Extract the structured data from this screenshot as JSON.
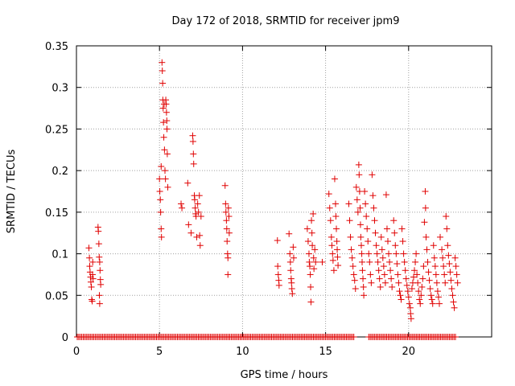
{
  "chart_data": {
    "type": "scatter",
    "title": "Day 172 of 2018, SRMTID for receiver jpm9",
    "xlabel": "GPS time / hours",
    "ylabel": "SRMTID / TECUs",
    "xlim": [
      0,
      25
    ],
    "ylim": [
      0,
      0.35
    ],
    "xticks": [
      0,
      5,
      10,
      15,
      20
    ],
    "xtick_labels": [
      "0",
      "5",
      "10",
      "15",
      "20"
    ],
    "yticks": [
      0,
      0.05,
      0.1,
      0.15,
      0.2,
      0.25,
      0.3,
      0.35
    ],
    "ytick_labels": [
      "0",
      "0.05",
      "0.1",
      "0.15",
      "0.2",
      "0.25",
      "0.3",
      "0.35"
    ],
    "grid": true,
    "marker": "+",
    "color": "#e00000",
    "zero_band": [
      [
        0.05,
        16.7
      ],
      [
        17.6,
        22.9
      ]
    ],
    "series": [
      {
        "name": "SRMTID",
        "points": [
          [
            0.75,
            0.107
          ],
          [
            0.78,
            0.095
          ],
          [
            0.8,
            0.085
          ],
          [
            0.82,
            0.078
          ],
          [
            0.85,
            0.072
          ],
          [
            0.87,
            0.066
          ],
          [
            0.9,
            0.06
          ],
          [
            0.92,
            0.045
          ],
          [
            0.95,
            0.043
          ],
          [
            0.97,
            0.075
          ],
          [
            0.98,
            0.09
          ],
          [
            1.0,
            0.07
          ],
          [
            1.3,
            0.132
          ],
          [
            1.32,
            0.127
          ],
          [
            1.35,
            0.112
          ],
          [
            1.37,
            0.096
          ],
          [
            1.4,
            0.09
          ],
          [
            1.42,
            0.08
          ],
          [
            1.44,
            0.069
          ],
          [
            1.46,
            0.063
          ],
          [
            1.38,
            0.05
          ],
          [
            1.4,
            0.04
          ],
          [
            5.0,
            0.19
          ],
          [
            5.02,
            0.175
          ],
          [
            5.05,
            0.165
          ],
          [
            5.07,
            0.15
          ],
          [
            5.1,
            0.13
          ],
          [
            5.12,
            0.12
          ],
          [
            5.15,
            0.33
          ],
          [
            5.17,
            0.32
          ],
          [
            5.19,
            0.305
          ],
          [
            5.2,
            0.285
          ],
          [
            5.22,
            0.275
          ],
          [
            5.24,
            0.258
          ],
          [
            5.1,
            0.205
          ],
          [
            5.26,
            0.24
          ],
          [
            5.3,
            0.225
          ],
          [
            5.33,
            0.2
          ],
          [
            5.36,
            0.19
          ],
          [
            5.38,
            0.285
          ],
          [
            5.4,
            0.28
          ],
          [
            5.42,
            0.27
          ],
          [
            5.45,
            0.25
          ],
          [
            5.47,
            0.22
          ],
          [
            5.5,
            0.18
          ],
          [
            5.28,
            0.28
          ],
          [
            5.44,
            0.26
          ],
          [
            6.3,
            0.16
          ],
          [
            6.35,
            0.155
          ],
          [
            6.7,
            0.185
          ],
          [
            6.75,
            0.135
          ],
          [
            6.9,
            0.125
          ],
          [
            7.0,
            0.242
          ],
          [
            7.02,
            0.235
          ],
          [
            7.04,
            0.22
          ],
          [
            7.06,
            0.208
          ],
          [
            7.1,
            0.17
          ],
          [
            7.12,
            0.165
          ],
          [
            7.15,
            0.155
          ],
          [
            7.18,
            0.148
          ],
          [
            7.2,
            0.145
          ],
          [
            7.24,
            0.12
          ],
          [
            7.3,
            0.16
          ],
          [
            7.35,
            0.15
          ],
          [
            7.4,
            0.17
          ],
          [
            7.42,
            0.122
          ],
          [
            7.45,
            0.11
          ],
          [
            7.5,
            0.145
          ],
          [
            8.95,
            0.182
          ],
          [
            8.98,
            0.16
          ],
          [
            9.0,
            0.15
          ],
          [
            9.03,
            0.14
          ],
          [
            9.05,
            0.13
          ],
          [
            9.07,
            0.115
          ],
          [
            9.1,
            0.1
          ],
          [
            9.12,
            0.095
          ],
          [
            9.15,
            0.155
          ],
          [
            9.18,
            0.145
          ],
          [
            9.2,
            0.125
          ],
          [
            9.12,
            0.075
          ],
          [
            12.1,
            0.116
          ],
          [
            12.12,
            0.085
          ],
          [
            12.15,
            0.075
          ],
          [
            12.18,
            0.068
          ],
          [
            12.2,
            0.062
          ],
          [
            12.8,
            0.124
          ],
          [
            12.85,
            0.1
          ],
          [
            12.88,
            0.09
          ],
          [
            12.9,
            0.08
          ],
          [
            12.93,
            0.07
          ],
          [
            12.95,
            0.065
          ],
          [
            12.97,
            0.058
          ],
          [
            13.0,
            0.052
          ],
          [
            13.05,
            0.108
          ],
          [
            13.08,
            0.095
          ],
          [
            13.9,
            0.13
          ],
          [
            13.95,
            0.115
          ],
          [
            14.0,
            0.1
          ],
          [
            14.02,
            0.09
          ],
          [
            14.05,
            0.085
          ],
          [
            14.08,
            0.075
          ],
          [
            14.1,
            0.06
          ],
          [
            14.12,
            0.042
          ],
          [
            14.15,
            0.14
          ],
          [
            14.18,
            0.125
          ],
          [
            14.2,
            0.11
          ],
          [
            14.25,
            0.148
          ],
          [
            14.28,
            0.095
          ],
          [
            14.3,
            0.082
          ],
          [
            14.35,
            0.105
          ],
          [
            14.4,
            0.09
          ],
          [
            14.8,
            0.09
          ],
          [
            15.2,
            0.172
          ],
          [
            15.25,
            0.155
          ],
          [
            15.3,
            0.14
          ],
          [
            15.35,
            0.12
          ],
          [
            15.38,
            0.11
          ],
          [
            15.42,
            0.1
          ],
          [
            15.45,
            0.092
          ],
          [
            15.5,
            0.08
          ],
          [
            15.55,
            0.19
          ],
          [
            15.6,
            0.16
          ],
          [
            15.62,
            0.145
          ],
          [
            15.65,
            0.13
          ],
          [
            15.68,
            0.115
          ],
          [
            15.7,
            0.105
          ],
          [
            15.72,
            0.096
          ],
          [
            15.75,
            0.086
          ],
          [
            16.4,
            0.16
          ],
          [
            16.45,
            0.14
          ],
          [
            16.5,
            0.12
          ],
          [
            16.55,
            0.105
          ],
          [
            16.6,
            0.095
          ],
          [
            16.65,
            0.085
          ],
          [
            16.7,
            0.075
          ],
          [
            16.75,
            0.068
          ],
          [
            16.8,
            0.058
          ],
          [
            16.85,
            0.18
          ],
          [
            16.9,
            0.165
          ],
          [
            16.95,
            0.15
          ],
          [
            17.0,
            0.207
          ],
          [
            17.02,
            0.195
          ],
          [
            17.05,
            0.175
          ],
          [
            17.08,
            0.155
          ],
          [
            17.1,
            0.135
          ],
          [
            17.12,
            0.12
          ],
          [
            17.15,
            0.11
          ],
          [
            17.18,
            0.1
          ],
          [
            17.2,
            0.09
          ],
          [
            17.22,
            0.08
          ],
          [
            17.25,
            0.07
          ],
          [
            17.28,
            0.06
          ],
          [
            17.3,
            0.05
          ],
          [
            17.35,
            0.175
          ],
          [
            17.4,
            0.16
          ],
          [
            17.45,
            0.145
          ],
          [
            17.5,
            0.13
          ],
          [
            17.55,
            0.115
          ],
          [
            17.6,
            0.1
          ],
          [
            17.65,
            0.09
          ],
          [
            17.7,
            0.075
          ],
          [
            17.75,
            0.065
          ],
          [
            17.8,
            0.195
          ],
          [
            17.85,
            0.17
          ],
          [
            17.9,
            0.155
          ],
          [
            17.95,
            0.14
          ],
          [
            18.0,
            0.125
          ],
          [
            18.05,
            0.11
          ],
          [
            18.1,
            0.1
          ],
          [
            18.15,
            0.09
          ],
          [
            18.2,
            0.08
          ],
          [
            18.25,
            0.07
          ],
          [
            18.3,
            0.06
          ],
          [
            18.35,
            0.12
          ],
          [
            18.4,
            0.105
          ],
          [
            18.45,
            0.095
          ],
          [
            18.5,
            0.085
          ],
          [
            18.55,
            0.075
          ],
          [
            18.6,
            0.065
          ],
          [
            18.65,
            0.171
          ],
          [
            18.7,
            0.13
          ],
          [
            18.75,
            0.115
          ],
          [
            18.8,
            0.1
          ],
          [
            18.85,
            0.09
          ],
          [
            18.9,
            0.08
          ],
          [
            18.95,
            0.07
          ],
          [
            19.0,
            0.06
          ],
          [
            19.1,
            0.14
          ],
          [
            19.15,
            0.125
          ],
          [
            19.2,
            0.11
          ],
          [
            19.25,
            0.1
          ],
          [
            19.3,
            0.088
          ],
          [
            19.35,
            0.075
          ],
          [
            19.4,
            0.065
          ],
          [
            19.45,
            0.055
          ],
          [
            19.5,
            0.05
          ],
          [
            19.55,
            0.045
          ],
          [
            19.6,
            0.13
          ],
          [
            19.65,
            0.115
          ],
          [
            19.7,
            0.1
          ],
          [
            19.75,
            0.09
          ],
          [
            19.8,
            0.08
          ],
          [
            19.85,
            0.07
          ],
          [
            19.9,
            0.062
          ],
          [
            19.95,
            0.055
          ],
          [
            20.0,
            0.048
          ],
          [
            20.05,
            0.04
          ],
          [
            20.1,
            0.035
          ],
          [
            20.12,
            0.028
          ],
          [
            20.15,
            0.022
          ],
          [
            20.2,
            0.058
          ],
          [
            20.25,
            0.065
          ],
          [
            20.3,
            0.072
          ],
          [
            20.35,
            0.08
          ],
          [
            20.4,
            0.09
          ],
          [
            20.45,
            0.1
          ],
          [
            20.5,
            0.075
          ],
          [
            20.55,
            0.065
          ],
          [
            20.6,
            0.055
          ],
          [
            20.65,
            0.045
          ],
          [
            20.7,
            0.04
          ],
          [
            20.75,
            0.05
          ],
          [
            20.8,
            0.06
          ],
          [
            20.85,
            0.07
          ],
          [
            20.9,
            0.085
          ],
          [
            20.95,
            0.138
          ],
          [
            21.0,
            0.175
          ],
          [
            21.02,
            0.155
          ],
          [
            21.05,
            0.12
          ],
          [
            21.1,
            0.105
          ],
          [
            21.15,
            0.09
          ],
          [
            21.2,
            0.078
          ],
          [
            21.25,
            0.068
          ],
          [
            21.3,
            0.058
          ],
          [
            21.35,
            0.05
          ],
          [
            21.4,
            0.045
          ],
          [
            21.45,
            0.04
          ],
          [
            21.5,
            0.11
          ],
          [
            21.55,
            0.095
          ],
          [
            21.6,
            0.085
          ],
          [
            21.65,
            0.075
          ],
          [
            21.7,
            0.065
          ],
          [
            21.75,
            0.055
          ],
          [
            21.8,
            0.048
          ],
          [
            21.85,
            0.04
          ],
          [
            21.9,
            0.12
          ],
          [
            22.0,
            0.105
          ],
          [
            22.05,
            0.095
          ],
          [
            22.1,
            0.085
          ],
          [
            22.15,
            0.075
          ],
          [
            22.2,
            0.065
          ],
          [
            22.25,
            0.145
          ],
          [
            22.3,
            0.13
          ],
          [
            22.35,
            0.11
          ],
          [
            22.4,
            0.098
          ],
          [
            22.45,
            0.088
          ],
          [
            22.5,
            0.078
          ],
          [
            22.55,
            0.068
          ],
          [
            22.6,
            0.058
          ],
          [
            22.65,
            0.05
          ],
          [
            22.7,
            0.042
          ],
          [
            22.75,
            0.035
          ],
          [
            22.8,
            0.095
          ],
          [
            22.85,
            0.085
          ],
          [
            22.9,
            0.075
          ],
          [
            22.95,
            0.065
          ]
        ]
      }
    ]
  }
}
